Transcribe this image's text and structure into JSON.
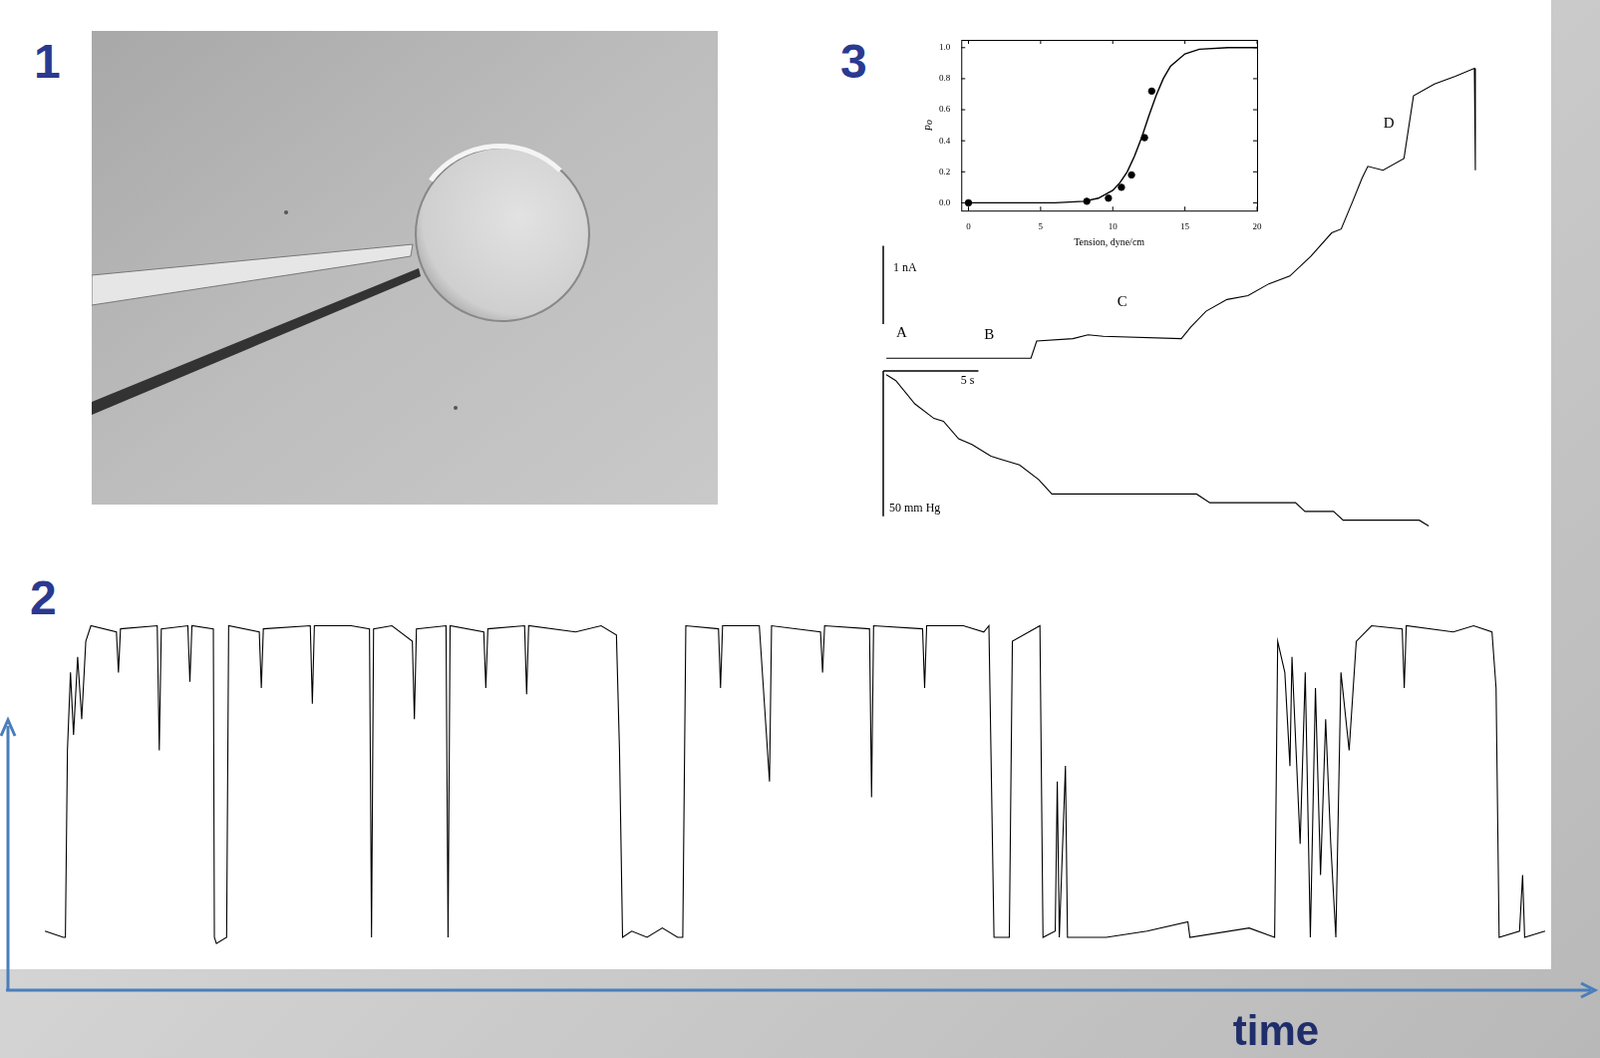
{
  "panel_labels": [
    "1",
    "2",
    "3"
  ],
  "chart_data": [
    {
      "type": "line",
      "xlabel": "time",
      "color": "#000000",
      "line_style": "solid",
      "grid": false,
      "tick_labels": false,
      "xlim": [
        -5,
        1475
      ],
      "ylim": [
        -0.08,
        1.12
      ],
      "x": [
        0,
        18,
        20,
        22,
        25,
        28,
        32,
        36,
        40,
        45,
        70,
        72,
        74,
        110,
        112,
        114,
        140,
        142,
        144,
        165,
        166,
        168,
        178,
        180,
        210,
        212,
        214,
        260,
        262,
        264,
        300,
        318,
        320,
        322,
        340,
        360,
        362,
        364,
        393,
        395,
        397,
        430,
        432,
        434,
        470,
        472,
        474,
        520,
        545,
        560,
        563,
        566,
        575,
        590,
        605,
        620,
        625,
        628,
        660,
        662,
        664,
        700,
        710,
        712,
        760,
        762,
        764,
        808,
        810,
        812,
        860,
        862,
        864,
        900,
        920,
        925,
        930,
        945,
        948,
        975,
        978,
        990,
        992,
        994,
        1000,
        1002,
        1040,
        1080,
        1120,
        1122,
        1180,
        1205,
        1208,
        1215,
        1220,
        1222,
        1230,
        1235,
        1240,
        1245,
        1250,
        1255,
        1260,
        1265,
        1270,
        1278,
        1285,
        1300,
        1330,
        1332,
        1334,
        1380,
        1400,
        1418,
        1422,
        1425,
        1445,
        1448,
        1450,
        1470
      ],
      "values": [
        0.02,
        0,
        0,
        0.6,
        0.85,
        0.65,
        0.9,
        0.7,
        0.95,
        1,
        0.98,
        0.85,
        0.99,
        1,
        0.6,
        0.99,
        1,
        0.82,
        1,
        0.99,
        0,
        -0.02,
        0,
        1,
        0.98,
        0.8,
        0.99,
        1,
        0.75,
        1,
        1,
        0.99,
        0,
        0.99,
        1,
        0.95,
        0.7,
        0.99,
        1,
        0,
        1,
        0.98,
        0.8,
        0.99,
        1,
        0.78,
        1,
        0.98,
        1,
        0.97,
        0.6,
        0,
        0.02,
        0,
        0.03,
        0,
        0,
        1,
        0.99,
        0.8,
        1,
        1,
        0.5,
        1,
        0.98,
        0.85,
        1,
        0.99,
        0.45,
        1,
        0.99,
        0.8,
        1,
        1,
        0.98,
        1,
        0,
        0,
        0.95,
        1,
        0,
        0.02,
        0.5,
        0,
        0.55,
        0,
        0,
        0.02,
        0.05,
        0,
        0.03,
        0,
        0.95,
        0.85,
        0.55,
        0.9,
        0.3,
        0.85,
        0,
        0.8,
        0.2,
        0.7,
        0.3,
        0,
        0.85,
        0.6,
        0.95,
        1,
        0.99,
        0.8,
        1,
        0.98,
        1,
        0.98,
        0.8,
        0,
        0.02,
        0.2,
        0,
        0.02
      ]
    },
    {
      "type": "scatter",
      "xlabel": "Tension, dyne/cm",
      "ylabel": "Po",
      "grid": false,
      "xlim": [
        -0.5,
        20
      ],
      "xticks": [
        0,
        5,
        10,
        15,
        20
      ],
      "ylim": [
        -0.05,
        1.05
      ],
      "yticks": [
        {
          "value": 0,
          "label": "0.0"
        },
        {
          "value": 0.2,
          "label": "0.2"
        },
        {
          "value": 0.4,
          "label": "0.4"
        },
        {
          "value": 0.6,
          "label": "0.6"
        },
        {
          "value": 0.8,
          "label": "0.8"
        },
        {
          "value": 1,
          "label": "1.0"
        }
      ],
      "series": [
        {
          "type": "line",
          "color": "#000000",
          "marker": "none",
          "line_style": "solid",
          "x": [
            0,
            2,
            4,
            6,
            8,
            9,
            10,
            10.5,
            11,
            11.5,
            12,
            12.5,
            13,
            13.5,
            14,
            15,
            16,
            18,
            20
          ],
          "values": [
            0,
            0,
            0,
            0,
            0.01,
            0.03,
            0.08,
            0.13,
            0.2,
            0.3,
            0.42,
            0.56,
            0.69,
            0.8,
            0.88,
            0.96,
            0.99,
            1,
            1
          ]
        },
        {
          "type": "scatter",
          "color": "#000000",
          "marker": "circle",
          "x": [
            0,
            8.2,
            9.7,
            10.6,
            11.3,
            12.2,
            12.7
          ],
          "values": [
            0,
            0.01,
            0.03,
            0.1,
            0.18,
            0.42,
            0.72
          ]
        }
      ]
    },
    {
      "type": "line",
      "color": "#000000",
      "line_style": "solid",
      "grid": false,
      "tick_labels": false,
      "xlim": [
        -1,
        32
      ],
      "ylim": [
        -0.2,
        4.0
      ],
      "x": [
        0,
        4.3,
        7.6,
        7.9,
        9.8,
        10.6,
        11.4,
        15.5,
        16,
        16.8,
        17.9,
        19,
        20.1,
        21.2,
        22.3,
        23.4,
        23.9,
        24.5,
        25,
        25.3,
        26.1,
        27.2,
        27.7,
        28.8,
        29.9,
        30.9,
        30.95
      ],
      "values": [
        0,
        0,
        0,
        0.22,
        0.25,
        0.3,
        0.28,
        0.25,
        0.4,
        0.6,
        0.75,
        0.8,
        0.95,
        1.05,
        1.3,
        1.6,
        1.65,
        2.0,
        2.3,
        2.45,
        2.4,
        2.55,
        3.35,
        3.5,
        3.6,
        3.7,
        2.4
      ],
      "annotations": [
        {
          "text": "A",
          "x": 0.8,
          "y": 0.23
        },
        {
          "text": "B",
          "x": 5.4,
          "y": 0.2
        },
        {
          "text": "C",
          "x": 12.4,
          "y": 0.62
        },
        {
          "text": "D",
          "x": 26.4,
          "y": 2.9
        }
      ],
      "scale_bars": [
        {
          "label": "1 nA",
          "value": 1,
          "axis": "y"
        }
      ]
    },
    {
      "type": "line",
      "color": "#000000",
      "line_style": "solid",
      "grid": false,
      "tick_labels": false,
      "xlim": [
        -1,
        32
      ],
      "ylim": [
        -58,
        2
      ],
      "x": [
        0,
        0.5,
        1.5,
        2.5,
        3,
        3.8,
        4.5,
        5.5,
        6,
        7,
        8,
        8.7,
        16.3,
        17,
        21.5,
        22,
        23.5,
        24,
        28,
        28.5
      ],
      "values": [
        0,
        -2,
        -10,
        -15,
        -16,
        -22,
        -24,
        -28,
        -29,
        -31,
        -36,
        -41,
        -41,
        -44,
        -44,
        -47,
        -47,
        -50,
        -50,
        -52
      ],
      "scale_bars": [
        {
          "label": "5 s",
          "value": 5,
          "axis": "x"
        },
        {
          "label": "50 mm Hg",
          "value": 50,
          "axis": "y"
        }
      ]
    }
  ]
}
